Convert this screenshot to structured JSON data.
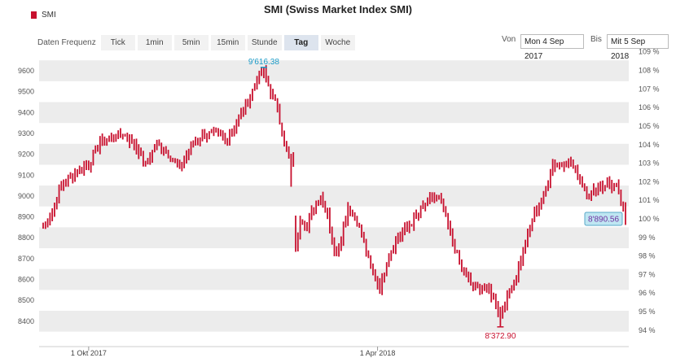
{
  "title": "SMI (Swiss Market Index SMI)",
  "legend": {
    "label": "SMI",
    "color": "#c8102e"
  },
  "toolbar": {
    "label": "Daten Frequenz",
    "buttons": [
      "Tick",
      "1min",
      "5min",
      "15min",
      "Stunde",
      "Tag",
      "Woche"
    ],
    "active": "Tag"
  },
  "range": {
    "from_label": "Von",
    "from_value": "Mon 4 Sep 2017",
    "to_label": "Bis",
    "to_value": "Mit 5 Sep 2018"
  },
  "annotations": {
    "high": "9'616.38",
    "low": "8'372.90",
    "last": "8'890.56"
  },
  "chart_data": {
    "type": "ohlc",
    "title": "SMI (Swiss Market Index SMI)",
    "series_name": "SMI",
    "color": "#c8102e",
    "grid": true,
    "ylim": [
      8350,
      9650
    ],
    "yticks_left": [
      8400,
      8500,
      8600,
      8700,
      8800,
      8900,
      9000,
      9100,
      9200,
      9300,
      9400,
      9500,
      9600
    ],
    "yticks_right": [
      "94 %",
      "95 %",
      "96 %",
      "97 %",
      "98 %",
      "99 %",
      "100 %",
      "101 %",
      "102 %",
      "103 %",
      "104 %",
      "105 %",
      "106 %",
      "107 %",
      "108 %",
      "109 %"
    ],
    "right_axis_base": 8890.56,
    "xticks": [
      {
        "label": "1 Okt 2017",
        "index": 20
      },
      {
        "label": "1 Apr 2018",
        "index": 147
      }
    ],
    "x_start": "2017-09-04",
    "x_end": "2018-09-05",
    "high": {
      "index": 97,
      "value": 9616.38
    },
    "low": {
      "index": 201,
      "value": 8372.9
    },
    "last": {
      "index": 256,
      "value": 8890.56
    },
    "anchors": [
      [
        0,
        8850
      ],
      [
        3,
        8900
      ],
      [
        8,
        9050
      ],
      [
        15,
        9120
      ],
      [
        20,
        9150
      ],
      [
        25,
        9260
      ],
      [
        30,
        9280
      ],
      [
        35,
        9300
      ],
      [
        40,
        9250
      ],
      [
        45,
        9150
      ],
      [
        50,
        9250
      ],
      [
        55,
        9200
      ],
      [
        60,
        9130
      ],
      [
        65,
        9240
      ],
      [
        70,
        9290
      ],
      [
        75,
        9300
      ],
      [
        80,
        9270
      ],
      [
        85,
        9350
      ],
      [
        90,
        9450
      ],
      [
        94,
        9560
      ],
      [
        97,
        9600
      ],
      [
        100,
        9500
      ],
      [
        103,
        9420
      ],
      [
        106,
        9250
      ],
      [
        108,
        9180
      ],
      [
        111,
        8750
      ],
      [
        113,
        8900
      ],
      [
        116,
        8850
      ],
      [
        119,
        8950
      ],
      [
        122,
        9000
      ],
      [
        125,
        8920
      ],
      [
        128,
        8720
      ],
      [
        131,
        8800
      ],
      [
        134,
        8950
      ],
      [
        138,
        8880
      ],
      [
        141,
        8780
      ],
      [
        144,
        8650
      ],
      [
        148,
        8560
      ],
      [
        152,
        8720
      ],
      [
        156,
        8800
      ],
      [
        160,
        8850
      ],
      [
        164,
        8900
      ],
      [
        168,
        8960
      ],
      [
        172,
        9000
      ],
      [
        175,
        8970
      ],
      [
        178,
        8850
      ],
      [
        181,
        8750
      ],
      [
        184,
        8650
      ],
      [
        188,
        8580
      ],
      [
        192,
        8560
      ],
      [
        196,
        8550
      ],
      [
        199,
        8480
      ],
      [
        201,
        8420
      ],
      [
        204,
        8520
      ],
      [
        208,
        8620
      ],
      [
        212,
        8780
      ],
      [
        216,
        8920
      ],
      [
        220,
        9000
      ],
      [
        224,
        9150
      ],
      [
        228,
        9160
      ],
      [
        232,
        9160
      ],
      [
        236,
        9080
      ],
      [
        240,
        9000
      ],
      [
        244,
        9040
      ],
      [
        248,
        9060
      ],
      [
        252,
        9040
      ],
      [
        256,
        8890
      ]
    ]
  }
}
